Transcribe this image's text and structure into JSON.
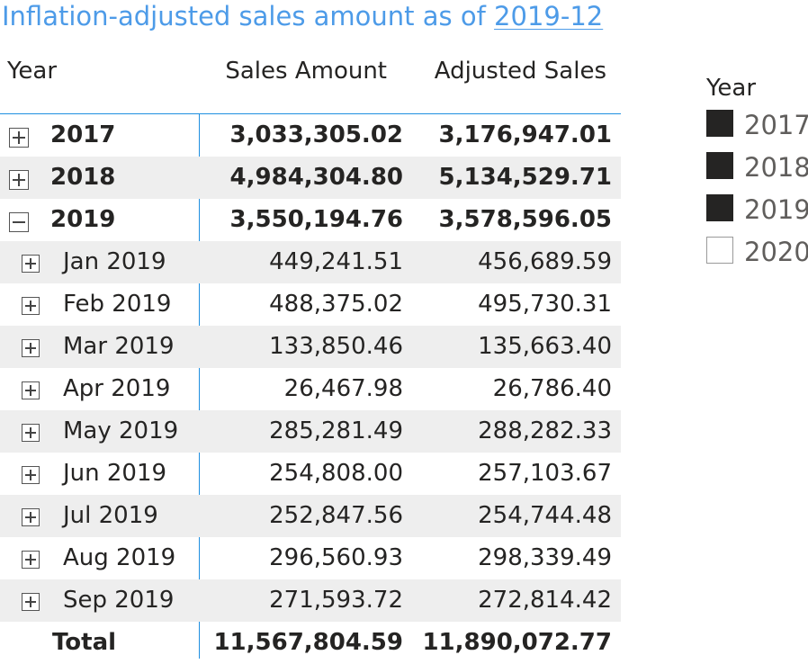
{
  "title": {
    "prefix": "Inflation-adjusted sales amount as of ",
    "date": "2019-12"
  },
  "matrix": {
    "headers": {
      "year": "Year",
      "sales": "Sales Amount",
      "adjusted": "Adjusted Sales"
    },
    "rows": [
      {
        "label": "2017",
        "sales": "3,033,305.02",
        "adjusted": "3,176,947.01"
      },
      {
        "label": "2018",
        "sales": "4,984,304.80",
        "adjusted": "5,134,529.71"
      },
      {
        "label": "2019",
        "sales": "3,550,194.76",
        "adjusted": "3,578,596.05"
      },
      {
        "label": "Jan 2019",
        "sales": "449,241.51",
        "adjusted": "456,689.59"
      },
      {
        "label": "Feb 2019",
        "sales": "488,375.02",
        "adjusted": "495,730.31"
      },
      {
        "label": "Mar 2019",
        "sales": "133,850.46",
        "adjusted": "135,663.40"
      },
      {
        "label": "Apr 2019",
        "sales": "26,467.98",
        "adjusted": "26,786.40"
      },
      {
        "label": "May 2019",
        "sales": "285,281.49",
        "adjusted": "288,282.33"
      },
      {
        "label": "Jun 2019",
        "sales": "254,808.00",
        "adjusted": "257,103.67"
      },
      {
        "label": "Jul 2019",
        "sales": "252,847.56",
        "adjusted": "254,744.48"
      },
      {
        "label": "Aug 2019",
        "sales": "296,560.93",
        "adjusted": "298,339.49"
      },
      {
        "label": "Sep 2019",
        "sales": "271,593.72",
        "adjusted": "272,814.42"
      }
    ],
    "total": {
      "label": "Total",
      "sales": "11,567,804.59",
      "adjusted": "11,890,072.77"
    }
  },
  "slicer": {
    "title": "Year",
    "items": [
      {
        "label": "2017",
        "checked": true
      },
      {
        "label": "2018",
        "checked": true
      },
      {
        "label": "2019",
        "checked": true
      },
      {
        "label": "2020",
        "checked": false
      }
    ]
  }
}
